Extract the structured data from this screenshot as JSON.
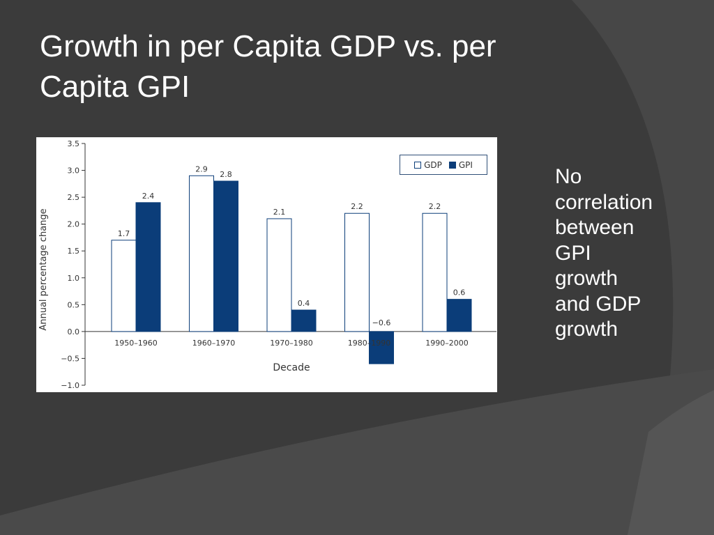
{
  "slide": {
    "title": "Growth in per Capita GDP vs. per Capita GPI",
    "side_note": "No\ncorrelation\nbetween\nGPI\ngrowth\nand GDP\ngrowth"
  },
  "colors": {
    "background": "#3b3b3b",
    "gdp_fill": "#ffffff",
    "gpi_fill": "#0b3d79",
    "bar_stroke": "#0b3d79"
  },
  "chart_data": {
    "type": "bar",
    "title": "",
    "xlabel": "Decade",
    "ylabel": "Annual percentage change",
    "categories": [
      "1950–1960",
      "1960–1970",
      "1970–1980",
      "1980–1990",
      "1990–2000"
    ],
    "series": [
      {
        "name": "GDP",
        "values": [
          1.7,
          2.9,
          2.1,
          2.2,
          2.2
        ],
        "data_labels": [
          "1.7",
          "2.9",
          "2.1",
          "2.2",
          "2.2"
        ]
      },
      {
        "name": "GPI",
        "values": [
          2.4,
          2.8,
          0.4,
          -0.6,
          0.6
        ],
        "data_labels": [
          "2.4",
          "2.8",
          "0.4",
          "−0.6",
          "0.6"
        ]
      }
    ],
    "yticks": [
      "3.5",
      "3.0",
      "2.5",
      "2.0",
      "1.5",
      "1.0",
      "0.5",
      "0.0",
      "−0.5",
      "−1.0"
    ],
    "ytick_values": [
      3.5,
      3.0,
      2.5,
      2.0,
      1.5,
      1.0,
      0.5,
      0.0,
      -0.5,
      -1.0
    ],
    "ylim": [
      -1.0,
      3.5
    ],
    "grid": false,
    "legend_position": "top-right"
  }
}
